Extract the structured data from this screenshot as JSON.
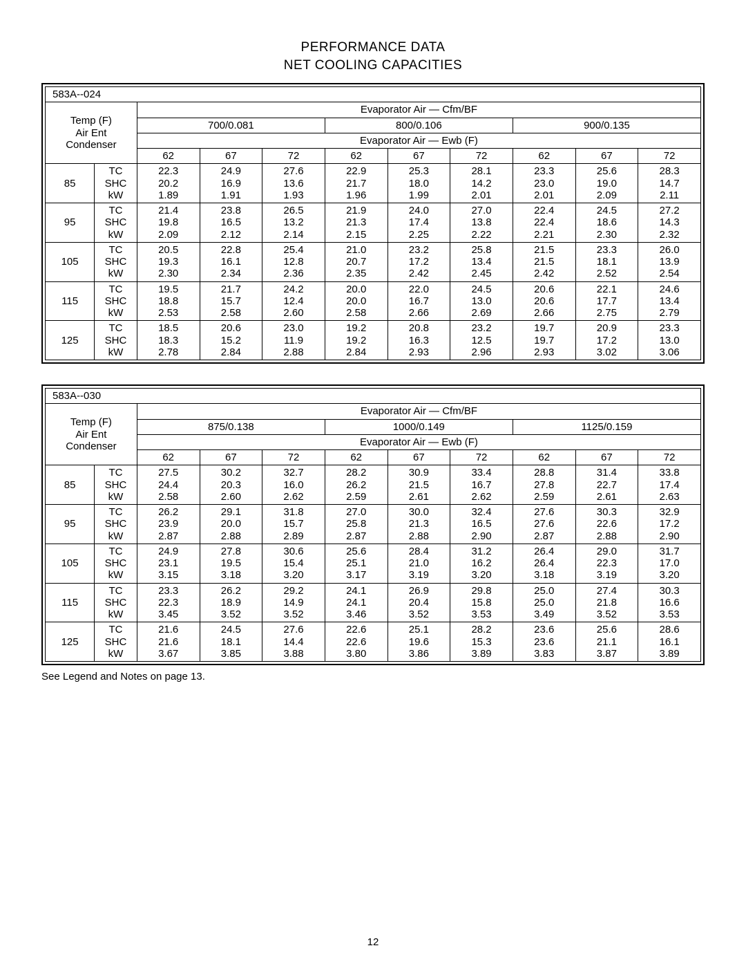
{
  "headings": {
    "title": "PERFORMANCE DATA",
    "subtitle": "NET COOLING CAPACITIES"
  },
  "footnote": "See Legend and Notes on page 13.",
  "page_number": "12",
  "common": {
    "temp_label_lines": [
      "Temp (F)",
      "Air Ent",
      "Condenser"
    ],
    "evap_cfm_label": "Evaporator Air — Cfm/BF",
    "evap_ewb_label": "Evaporator Air — Ewb (F)",
    "ewb_cols": [
      "62",
      "67",
      "72",
      "62",
      "67",
      "72",
      "62",
      "67",
      "72"
    ],
    "metrics": [
      "TC",
      "SHC",
      "kW"
    ],
    "temps": [
      "85",
      "95",
      "105",
      "115",
      "125"
    ]
  },
  "tables": [
    {
      "model": "583A--024",
      "cfm_bf": [
        "700/0.081",
        "800/0.106",
        "900/0.135"
      ],
      "rows": [
        [
          [
            "22.3",
            "24.9",
            "27.6",
            "22.9",
            "25.3",
            "28.1",
            "23.3",
            "25.6",
            "28.3"
          ],
          [
            "20.2",
            "16.9",
            "13.6",
            "21.7",
            "18.0",
            "14.2",
            "23.0",
            "19.0",
            "14.7"
          ],
          [
            "1.89",
            "1.91",
            "1.93",
            "1.96",
            "1.99",
            "2.01",
            "2.01",
            "2.09",
            "2.11"
          ]
        ],
        [
          [
            "21.4",
            "23.8",
            "26.5",
            "21.9",
            "24.0",
            "27.0",
            "22.4",
            "24.5",
            "27.2"
          ],
          [
            "19.8",
            "16.5",
            "13.2",
            "21.3",
            "17.4",
            "13.8",
            "22.4",
            "18.6",
            "14.3"
          ],
          [
            "2.09",
            "2.12",
            "2.14",
            "2.15",
            "2.25",
            "2.22",
            "2.21",
            "2.30",
            "2.32"
          ]
        ],
        [
          [
            "20.5",
            "22.8",
            "25.4",
            "21.0",
            "23.2",
            "25.8",
            "21.5",
            "23.3",
            "26.0"
          ],
          [
            "19.3",
            "16.1",
            "12.8",
            "20.7",
            "17.2",
            "13.4",
            "21.5",
            "18.1",
            "13.9"
          ],
          [
            "2.30",
            "2.34",
            "2.36",
            "2.35",
            "2.42",
            "2.45",
            "2.42",
            "2.52",
            "2.54"
          ]
        ],
        [
          [
            "19.5",
            "21.7",
            "24.2",
            "20.0",
            "22.0",
            "24.5",
            "20.6",
            "22.1",
            "24.6"
          ],
          [
            "18.8",
            "15.7",
            "12.4",
            "20.0",
            "16.7",
            "13.0",
            "20.6",
            "17.7",
            "13.4"
          ],
          [
            "2.53",
            "2.58",
            "2.60",
            "2.58",
            "2.66",
            "2.69",
            "2.66",
            "2.75",
            "2.79"
          ]
        ],
        [
          [
            "18.5",
            "20.6",
            "23.0",
            "19.2",
            "20.8",
            "23.2",
            "19.7",
            "20.9",
            "23.3"
          ],
          [
            "18.3",
            "15.2",
            "11.9",
            "19.2",
            "16.3",
            "12.5",
            "19.7",
            "17.2",
            "13.0"
          ],
          [
            "2.78",
            "2.84",
            "2.88",
            "2.84",
            "2.93",
            "2.96",
            "2.93",
            "3.02",
            "3.06"
          ]
        ]
      ]
    },
    {
      "model": "583A--030",
      "cfm_bf": [
        "875/0.138",
        "1000/0.149",
        "1125/0.159"
      ],
      "rows": [
        [
          [
            "27.5",
            "30.2",
            "32.7",
            "28.2",
            "30.9",
            "33.4",
            "28.8",
            "31.4",
            "33.8"
          ],
          [
            "24.4",
            "20.3",
            "16.0",
            "26.2",
            "21.5",
            "16.7",
            "27.8",
            "22.7",
            "17.4"
          ],
          [
            "2.58",
            "2.60",
            "2.62",
            "2.59",
            "2.61",
            "2.62",
            "2.59",
            "2.61",
            "2.63"
          ]
        ],
        [
          [
            "26.2",
            "29.1",
            "31.8",
            "27.0",
            "30.0",
            "32.4",
            "27.6",
            "30.3",
            "32.9"
          ],
          [
            "23.9",
            "20.0",
            "15.7",
            "25.8",
            "21.3",
            "16.5",
            "27.6",
            "22.6",
            "17.2"
          ],
          [
            "2.87",
            "2.88",
            "2.89",
            "2.87",
            "2.88",
            "2.90",
            "2.87",
            "2.88",
            "2.90"
          ]
        ],
        [
          [
            "24.9",
            "27.8",
            "30.6",
            "25.6",
            "28.4",
            "31.2",
            "26.4",
            "29.0",
            "31.7"
          ],
          [
            "23.1",
            "19.5",
            "15.4",
            "25.1",
            "21.0",
            "16.2",
            "26.4",
            "22.3",
            "17.0"
          ],
          [
            "3.15",
            "3.18",
            "3.20",
            "3.17",
            "3.19",
            "3.20",
            "3.18",
            "3.19",
            "3.20"
          ]
        ],
        [
          [
            "23.3",
            "26.2",
            "29.2",
            "24.1",
            "26.9",
            "29.8",
            "25.0",
            "27.4",
            "30.3"
          ],
          [
            "22.3",
            "18.9",
            "14.9",
            "24.1",
            "20.4",
            "15.8",
            "25.0",
            "21.8",
            "16.6"
          ],
          [
            "3.45",
            "3.52",
            "3.52",
            "3.46",
            "3.52",
            "3.53",
            "3.49",
            "3.52",
            "3.53"
          ]
        ],
        [
          [
            "21.6",
            "24.5",
            "27.6",
            "22.6",
            "25.1",
            "28.2",
            "23.6",
            "25.6",
            "28.6"
          ],
          [
            "21.6",
            "18.1",
            "14.4",
            "22.6",
            "19.6",
            "15.3",
            "23.6",
            "21.1",
            "16.1"
          ],
          [
            "3.67",
            "3.85",
            "3.88",
            "3.80",
            "3.86",
            "3.89",
            "3.83",
            "3.87",
            "3.89"
          ]
        ]
      ]
    }
  ]
}
